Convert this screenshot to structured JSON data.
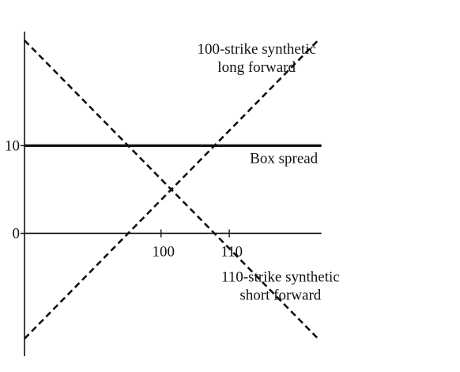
{
  "chart_data": {
    "type": "line",
    "title": "",
    "xlabel": "",
    "ylabel": "",
    "xlim": [
      80,
      124
    ],
    "ylim": [
      -14,
      23
    ],
    "grid": false,
    "legend": "none",
    "x_ticks": [
      {
        "value": 100,
        "label": "100"
      },
      {
        "value": 110,
        "label": "110"
      }
    ],
    "y_ticks": [
      {
        "value": 0,
        "label": "0"
      },
      {
        "value": 10,
        "label": "10"
      }
    ],
    "zero_line_x": [
      80,
      123.5
    ],
    "series": [
      {
        "key": "long-forward",
        "style": "dashed",
        "points": [
          [
            80,
            -12
          ],
          [
            123,
            22
          ]
        ]
      },
      {
        "key": "short-forward",
        "style": "dashed",
        "points": [
          [
            80,
            22
          ],
          [
            123,
            -12
          ]
        ]
      },
      {
        "key": "box-spread",
        "style": "thick",
        "points": [
          [
            80,
            10
          ],
          [
            123.5,
            10
          ]
        ]
      }
    ],
    "annotations": [
      {
        "key": "long-forward",
        "lines": [
          "100-strike synthetic",
          "long forward"
        ],
        "x": 114,
        "y": 20.5
      },
      {
        "key": "box-spread",
        "lines": [
          "Box spread"
        ],
        "x": 118,
        "y": 8
      },
      {
        "key": "short-forward",
        "lines": [
          "110-strike synthetic",
          "short forward"
        ],
        "x": 117.5,
        "y": -5.5
      }
    ],
    "colors": {
      "ink": "#111111"
    }
  }
}
